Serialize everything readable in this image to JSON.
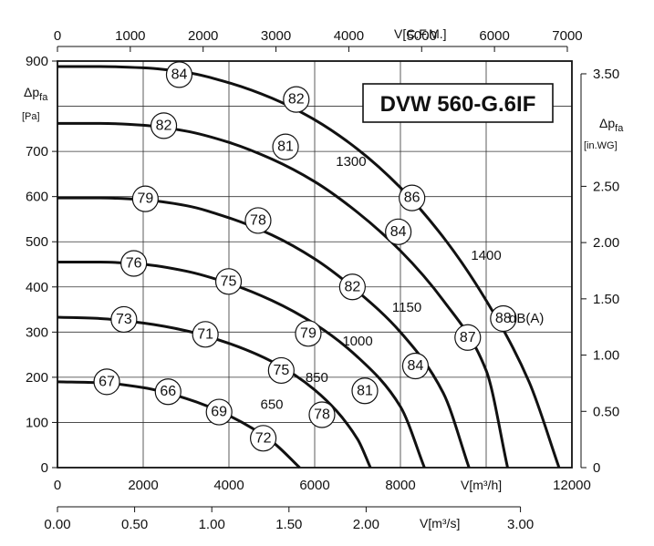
{
  "chart_data": {
    "type": "line",
    "title": "DVW 560-G.6IF",
    "x_axis_bottom": {
      "label": "V[m³/h]",
      "min": 0,
      "max": 12000,
      "ticks": [
        "0",
        "2000",
        "4000",
        "6000",
        "8000",
        "12000"
      ],
      "tick_values": [
        0,
        2000,
        4000,
        6000,
        8000,
        12000
      ]
    },
    "x_axis_top": {
      "label": "V[C.F.M.]",
      "ticks": [
        "0",
        "1000",
        "2000",
        "3000",
        "4000",
        "5000",
        "6000",
        "7000"
      ],
      "tick_values": [
        0,
        1000,
        2000,
        3000,
        4000,
        5000,
        6000,
        7000
      ]
    },
    "x_axis_m3s": {
      "label": "V[m³/s]",
      "ticks": [
        "0.00",
        "0.50",
        "1.00",
        "1.50",
        "2.00",
        "3.00"
      ],
      "tick_values": [
        0,
        0.5,
        1.0,
        1.5,
        2.0,
        3.0
      ]
    },
    "y_axis_left": {
      "label_main": "Δp",
      "label_sub": "fa",
      "unit": "[Pa]",
      "min": 0,
      "max": 900,
      "ticks": [
        "0",
        "100",
        "200",
        "300",
        "400",
        "500",
        "600",
        "700",
        "900"
      ],
      "tick_values": [
        0,
        100,
        200,
        300,
        400,
        500,
        600,
        700,
        900
      ]
    },
    "y_axis_right": {
      "label_main": "Δp",
      "label_sub": "fa",
      "unit": "[in.WG]",
      "ticks": [
        "0",
        "0.50",
        "1.00",
        "1.50",
        "2.00",
        "2.50",
        "3.50"
      ],
      "tick_values": [
        0,
        0.5,
        1.0,
        1.5,
        2.0,
        2.5,
        3.5
      ]
    },
    "grid": true,
    "series": [
      {
        "name": "650",
        "x": [
          0,
          1000,
          2000,
          3000,
          4000,
          5000,
          5650
        ],
        "y": [
          190,
          188,
          177,
          153,
          115,
          58,
          0
        ]
      },
      {
        "name": "1000",
        "x": [
          0,
          1000,
          2000,
          3000,
          4000,
          5000,
          6000,
          7000,
          7300
        ],
        "y": [
          333,
          330,
          320,
          303,
          275,
          235,
          172,
          63,
          0
        ]
      },
      {
        "name": "1150",
        "x": [
          0,
          1000,
          2000,
          3000,
          4000,
          5000,
          6000,
          7000,
          8000,
          8560
        ],
        "y": [
          455,
          455,
          450,
          435,
          408,
          370,
          318,
          245,
          135,
          0
        ]
      },
      {
        "name": "1300",
        "x": [
          0,
          1000,
          2000,
          3000,
          4000,
          5000,
          6000,
          7000,
          8000,
          9000,
          9600
        ],
        "y": [
          597,
          597,
          593,
          580,
          553,
          515,
          462,
          390,
          300,
          165,
          0
        ]
      },
      {
        "name": "1400",
        "x": [
          0,
          1000,
          2000,
          3000,
          4000,
          5000,
          6000,
          7000,
          8000,
          9000,
          10000,
          10500
        ],
        "y": [
          762,
          762,
          758,
          745,
          720,
          683,
          633,
          565,
          480,
          370,
          215,
          0
        ]
      },
      {
        "name": "",
        "x": [
          0,
          1000,
          2000,
          3000,
          4000,
          5000,
          6000,
          7000,
          8000,
          9000,
          10000,
          11000,
          11700
        ],
        "y": [
          888,
          888,
          885,
          875,
          852,
          818,
          770,
          705,
          620,
          510,
          370,
          190,
          0
        ]
      }
    ],
    "curve_labels": [
      {
        "text": "650",
        "x": 5000,
        "y": 130
      },
      {
        "text": "850",
        "x": 6050,
        "y": 190
      },
      {
        "text": "1000",
        "x": 7000,
        "y": 270
      },
      {
        "text": "1150",
        "x": 8150,
        "y": 345
      },
      {
        "text": "1300",
        "x": 6850,
        "y": 668
      },
      {
        "text": "1400",
        "x": 10000,
        "y": 460
      }
    ],
    "db_markers": [
      {
        "text": "67",
        "x": 1150,
        "y": 190
      },
      {
        "text": "66",
        "x": 2580,
        "y": 168
      },
      {
        "text": "69",
        "x": 3770,
        "y": 123
      },
      {
        "text": "72",
        "x": 4800,
        "y": 65
      },
      {
        "text": "73",
        "x": 1550,
        "y": 328
      },
      {
        "text": "71",
        "x": 3450,
        "y": 295
      },
      {
        "text": "75",
        "x": 5220,
        "y": 215
      },
      {
        "text": "78",
        "x": 6170,
        "y": 117
      },
      {
        "text": "76",
        "x": 1780,
        "y": 452
      },
      {
        "text": "75",
        "x": 3990,
        "y": 412
      },
      {
        "text": "79",
        "x": 5850,
        "y": 297
      },
      {
        "text": "81",
        "x": 7170,
        "y": 170
      },
      {
        "text": "79",
        "x": 2050,
        "y": 595
      },
      {
        "text": "78",
        "x": 4680,
        "y": 547
      },
      {
        "text": "82",
        "x": 6880,
        "y": 400
      },
      {
        "text": "84",
        "x": 8350,
        "y": 225
      },
      {
        "text": "82",
        "x": 2480,
        "y": 757
      },
      {
        "text": "81",
        "x": 5320,
        "y": 710
      },
      {
        "text": "84",
        "x": 7950,
        "y": 522
      },
      {
        "text": "87",
        "x": 9570,
        "y": 288
      },
      {
        "text": "84",
        "x": 2840,
        "y": 870
      },
      {
        "text": "82",
        "x": 5570,
        "y": 815
      },
      {
        "text": "86",
        "x": 8270,
        "y": 597
      },
      {
        "text": "88",
        "x": 10400,
        "y": 330
      }
    ],
    "db_unit_label": "dB(A)"
  }
}
